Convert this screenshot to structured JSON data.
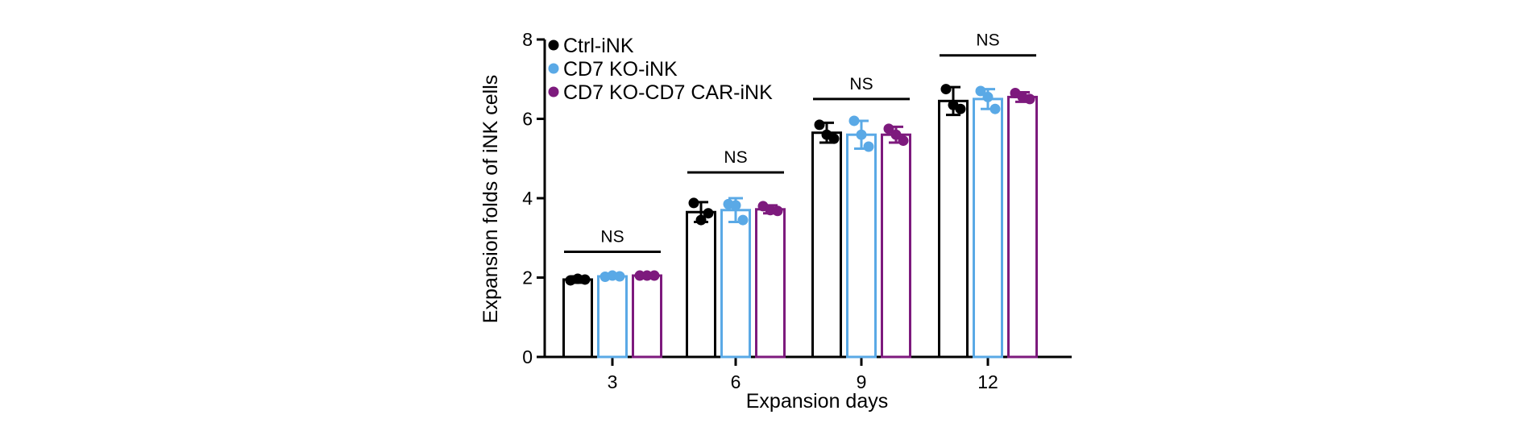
{
  "chart_data": {
    "type": "bar",
    "title": "",
    "xlabel": "Expansion days",
    "ylabel": "Expansion folds of iNK cells",
    "ylim": [
      0,
      8
    ],
    "yticks": [
      "0",
      "2",
      "4",
      "6",
      "8"
    ],
    "categories": [
      "3",
      "6",
      "9",
      "12"
    ],
    "legend_position": "top-left",
    "series": [
      {
        "name": "Ctrl-iNK",
        "color": "#000000",
        "values": [
          1.95,
          3.65,
          5.65,
          6.45
        ],
        "error": [
          0.08,
          0.25,
          0.25,
          0.35
        ],
        "points": [
          [
            1.93,
            1.97,
            1.95
          ],
          [
            3.88,
            3.45,
            3.62
          ],
          [
            5.85,
            5.6,
            5.5
          ],
          [
            6.75,
            6.35,
            6.25
          ]
        ]
      },
      {
        "name": "CD7 KO-iNK",
        "color": "#5aa9e6",
        "values": [
          2.03,
          3.7,
          5.6,
          6.5
        ],
        "error": [
          0.04,
          0.3,
          0.35,
          0.25
        ],
        "points": [
          [
            2.02,
            2.05,
            2.03
          ],
          [
            3.85,
            3.82,
            3.45
          ],
          [
            5.95,
            5.6,
            5.3
          ],
          [
            6.7,
            6.55,
            6.25
          ]
        ]
      },
      {
        "name": "CD7 KO-CD7 CAR-iNK",
        "color": "#7d1a7d",
        "values": [
          2.05,
          3.72,
          5.6,
          6.55
        ],
        "error": [
          0.03,
          0.1,
          0.2,
          0.12
        ],
        "points": [
          [
            2.05,
            2.05,
            2.05
          ],
          [
            3.8,
            3.7,
            3.68
          ],
          [
            5.75,
            5.6,
            5.45
          ],
          [
            6.65,
            6.55,
            6.5
          ]
        ]
      }
    ],
    "annotations": [
      {
        "text": "NS",
        "category": "3",
        "y": 2.65
      },
      {
        "text": "NS",
        "category": "6",
        "y": 4.65
      },
      {
        "text": "NS",
        "category": "9",
        "y": 6.5
      },
      {
        "text": "NS",
        "category": "12",
        "y": 7.6
      }
    ]
  }
}
